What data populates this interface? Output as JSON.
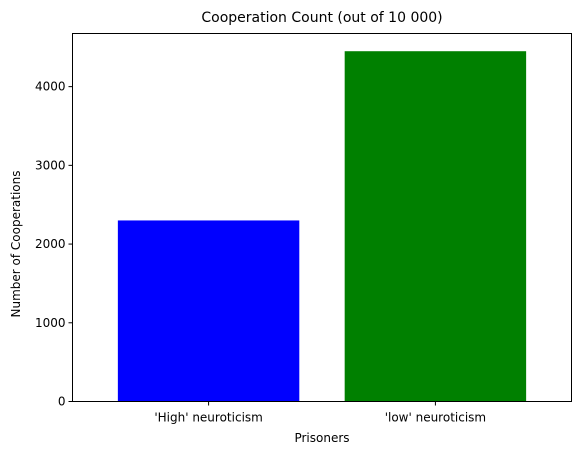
{
  "chart_data": {
    "type": "bar",
    "title": "Cooperation Count (out of 10 000)",
    "xlabel": "Prisoners",
    "ylabel": "Number of Cooperations",
    "categories": [
      "'High' neuroticism",
      "'low' neuroticism"
    ],
    "values": [
      2300,
      4450
    ],
    "colors": [
      "#0000ff",
      "#008000"
    ],
    "ylim": [
      0,
      4675
    ],
    "yticks": [
      0,
      1000,
      2000,
      3000,
      4000
    ],
    "grid": false,
    "legend": "none"
  }
}
